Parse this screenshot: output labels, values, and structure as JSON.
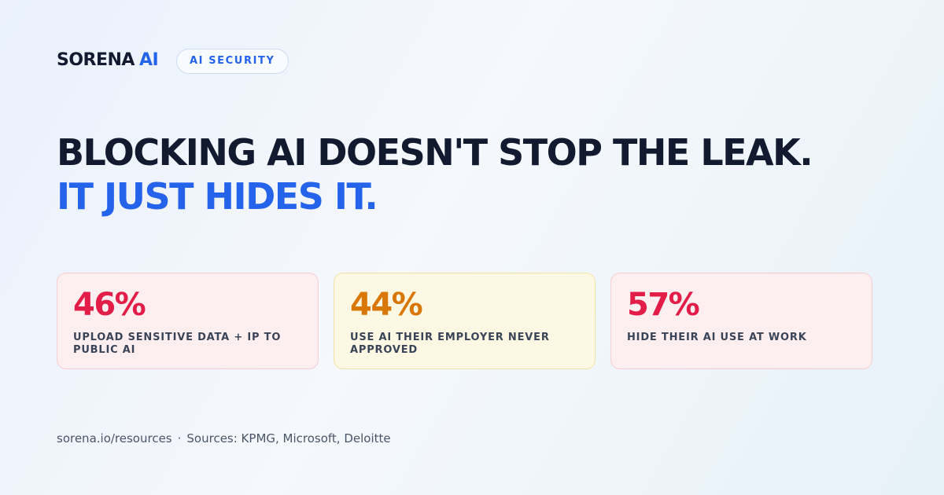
{
  "brand": {
    "name": "SORENA",
    "accent": "AI"
  },
  "badge": "AI SECURITY",
  "headline": {
    "line1": "BLOCKING AI DOESN'T STOP THE LEAK.",
    "line2": "IT JUST HIDES IT."
  },
  "stats": [
    {
      "value": "46%",
      "label": "UPLOAD SENSITIVE DATA + IP TO PUBLIC AI"
    },
    {
      "value": "44%",
      "label": "USE AI THEIR EMPLOYER NEVER APPROVED"
    },
    {
      "value": "57%",
      "label": "HIDE THEIR AI USE AT WORK"
    }
  ],
  "footer": {
    "site": "sorena.io/resources",
    "separator": "·",
    "sources": "Sources: KPMG, Microsoft, Deloitte"
  }
}
